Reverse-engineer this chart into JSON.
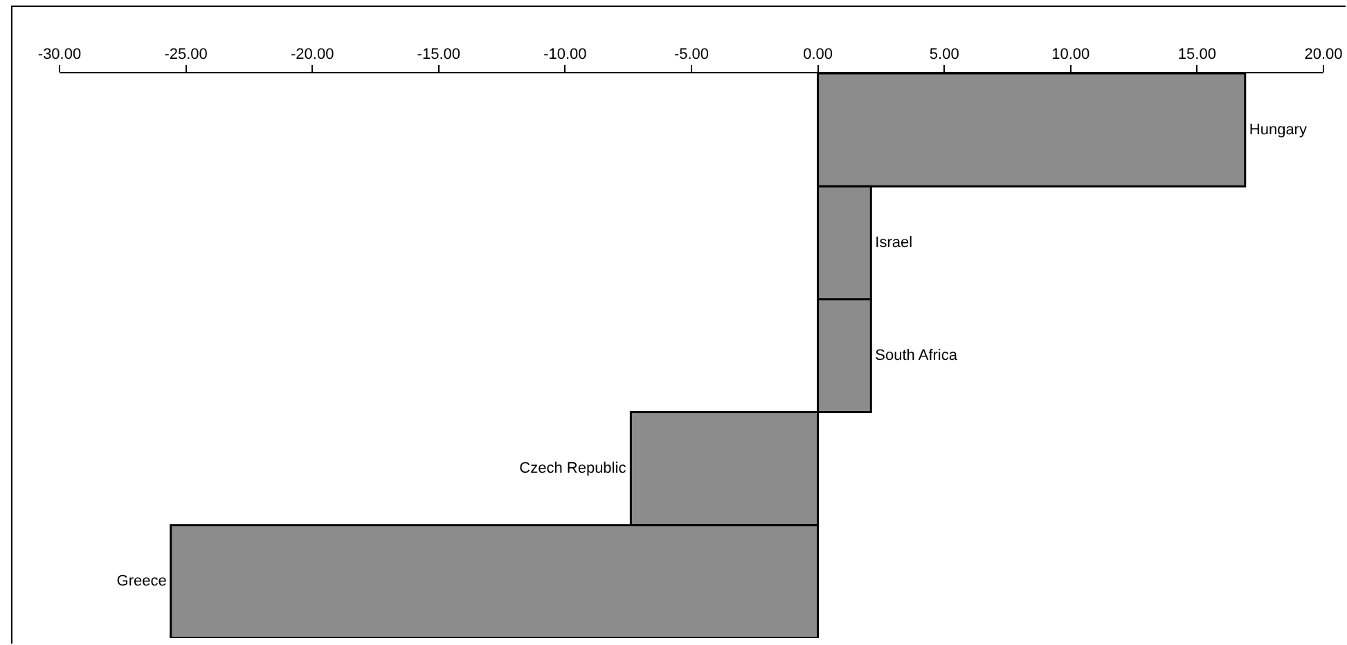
{
  "chart_data": {
    "type": "bar",
    "orientation": "horizontal",
    "categories": [
      "Hungary",
      "Israel",
      "South Africa",
      "Czech Republic",
      "Greece"
    ],
    "values": [
      16.9,
      2.1,
      2.1,
      -7.4,
      -25.6
    ],
    "color": "#8c8c8c",
    "xlim": [
      -30,
      20
    ],
    "xticks": [
      {
        "value": -30,
        "label": "-30.00"
      },
      {
        "value": -25,
        "label": "-25.00"
      },
      {
        "value": -20,
        "label": "-20.00"
      },
      {
        "value": -15,
        "label": "-15.00"
      },
      {
        "value": -10,
        "label": "-10.00"
      },
      {
        "value": -5,
        "label": "-5.00"
      },
      {
        "value": 0,
        "label": "0.00"
      },
      {
        "value": 5,
        "label": "5.00"
      },
      {
        "value": 10,
        "label": "10.00"
      },
      {
        "value": 15,
        "label": "15.00"
      },
      {
        "value": 20,
        "label": "20.00"
      }
    ],
    "grid": false
  }
}
